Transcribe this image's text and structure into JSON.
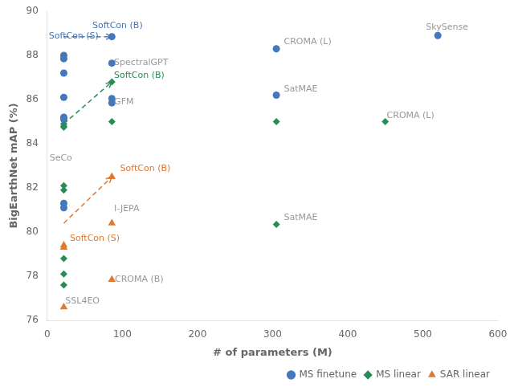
{
  "chart_data": {
    "type": "scatter",
    "xlabel": "# of parameters (M)",
    "ylabel": "BigEarthNet mAP (%)",
    "xlim": [
      0,
      600
    ],
    "ylim": [
      76,
      90
    ],
    "xticks": [
      0,
      100,
      200,
      300,
      400,
      500,
      600
    ],
    "yticks": [
      76,
      78,
      80,
      82,
      84,
      86,
      88,
      90
    ],
    "grid": false,
    "legend": "lower right",
    "series": [
      {
        "name": "MS finetune",
        "color": "#4477bb",
        "marker": "circle",
        "x": [
          22,
          22,
          22,
          22,
          22,
          22,
          22,
          22,
          86,
          86,
          86,
          86,
          305,
          305,
          520
        ],
        "values": [
          88.0,
          87.85,
          87.2,
          86.1,
          85.2,
          85.1,
          81.3,
          81.1,
          88.85,
          87.65,
          86.05,
          85.85,
          88.3,
          86.2,
          88.9
        ]
      },
      {
        "name": "MS linear",
        "color": "#2a8c55",
        "marker": "diamond",
        "x": [
          22,
          22,
          22,
          22,
          22,
          22,
          22,
          22,
          86,
          86,
          305,
          305,
          450
        ],
        "values": [
          84.9,
          84.8,
          84.75,
          82.1,
          81.9,
          78.8,
          78.1,
          77.6,
          86.8,
          85.0,
          85.0,
          80.35,
          85.0
        ]
      },
      {
        "name": "SAR linear",
        "color": "#e07830",
        "marker": "triangle",
        "x": [
          22,
          22,
          22,
          86,
          86,
          86
        ],
        "values": [
          79.4,
          79.3,
          76.6,
          82.5,
          80.4,
          77.85
        ]
      }
    ],
    "arrows": [
      {
        "x": [
          22,
          86
        ],
        "y": [
          88.85,
          88.85
        ],
        "color": "#4477bb",
        "line_style": "dashed"
      },
      {
        "x": [
          22,
          86
        ],
        "y": [
          84.9,
          86.8
        ],
        "color": "#2a8c55",
        "line_style": "dashed"
      },
      {
        "x": [
          22,
          86
        ],
        "y": [
          80.4,
          82.5
        ],
        "color": "#e07830",
        "line_style": "dashed"
      }
    ],
    "annotations": [
      {
        "text": "SoftCon (S)",
        "x": 2,
        "y": 88.88,
        "color": "#4477bb"
      },
      {
        "text": "SoftCon (B)",
        "x": 60,
        "y": 89.35,
        "color": "#4477bb"
      },
      {
        "text": "SpectralGPT",
        "x": 89,
        "y": 87.68,
        "color": "#999999"
      },
      {
        "text": "SoftCon (B)",
        "x": 89,
        "y": 87.1,
        "color": "#2a8c55"
      },
      {
        "text": "GFM",
        "x": 89,
        "y": 85.9,
        "color": "#999999"
      },
      {
        "text": "SeCo",
        "x": 3,
        "y": 83.35,
        "color": "#999999"
      },
      {
        "text": "SoftCon (B)",
        "x": 97,
        "y": 82.85,
        "color": "#e07830"
      },
      {
        "text": "I-JEPA",
        "x": 89,
        "y": 81.05,
        "color": "#999999"
      },
      {
        "text": "SoftCon (S)",
        "x": 30,
        "y": 79.7,
        "color": "#e07830"
      },
      {
        "text": "CROMA (B)",
        "x": 90,
        "y": 77.85,
        "color": "#999999"
      },
      {
        "text": "SSL4EO",
        "x": 24,
        "y": 76.85,
        "color": "#999999"
      },
      {
        "text": "CROMA (L)",
        "x": 315,
        "y": 88.6,
        "color": "#999999"
      },
      {
        "text": "SatMAE",
        "x": 315,
        "y": 86.45,
        "color": "#999999"
      },
      {
        "text": "CROMA (L)",
        "x": 452,
        "y": 85.25,
        "color": "#999999"
      },
      {
        "text": "SatMAE",
        "x": 315,
        "y": 80.65,
        "color": "#999999"
      },
      {
        "text": "SkySense",
        "x": 504,
        "y": 89.25,
        "color": "#999999"
      }
    ]
  }
}
